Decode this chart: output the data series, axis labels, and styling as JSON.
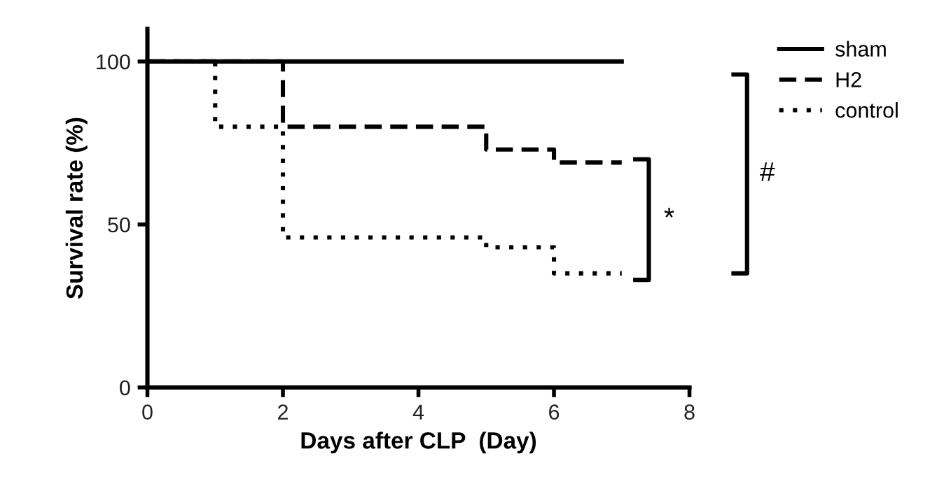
{
  "chart_data": {
    "type": "step",
    "xlabel": "Days after CLP  (Day)",
    "ylabel": "Survival rate (%)",
    "xlim": [
      0,
      8
    ],
    "xticks": [
      0,
      2,
      4,
      6,
      8
    ],
    "ylim": [
      0,
      110
    ],
    "yticks": [
      0,
      50,
      100
    ],
    "grid": false,
    "legend": "right",
    "marker": "none",
    "series": [
      {
        "name": "sham",
        "color": "#000000",
        "line_style": "solid",
        "x": [
          0,
          7
        ],
        "values": [
          100,
          100
        ]
      },
      {
        "name": "H2",
        "color": "#000000",
        "line_style": "dashed",
        "x": [
          0,
          2,
          5,
          6,
          7
        ],
        "values": [
          100,
          80,
          73,
          69,
          69
        ]
      },
      {
        "name": "control",
        "color": "#000000",
        "line_style": "dotted",
        "x": [
          0,
          1,
          2,
          5,
          6,
          7
        ],
        "values": [
          100,
          80,
          46,
          43,
          35,
          35
        ]
      }
    ],
    "annotations": [
      "*",
      "#"
    ]
  }
}
